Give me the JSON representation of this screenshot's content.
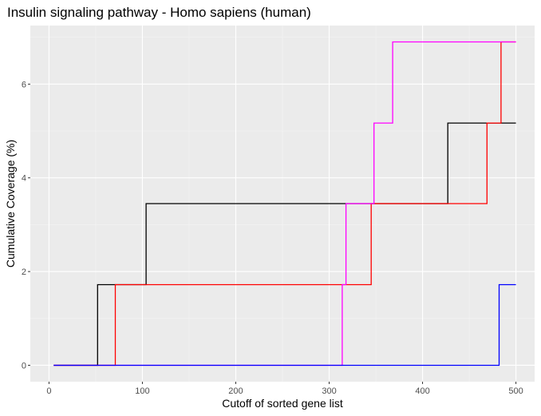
{
  "chart_data": {
    "type": "line",
    "step": true,
    "title": "Insulin signaling pathway - Homo sapiens (human)",
    "xlabel": "Cutoff of sorted gene list",
    "ylabel": "Cumulative Coverage (%)",
    "xlim": [
      -20,
      520
    ],
    "ylim": [
      -0.35,
      7.25
    ],
    "xticks": [
      0,
      100,
      200,
      300,
      400,
      500
    ],
    "yticks": [
      0,
      2,
      4,
      6
    ],
    "grid": true,
    "legend": "none",
    "series": [
      {
        "color": "#000000",
        "points": [
          [
            5,
            0
          ],
          [
            52,
            0
          ],
          [
            52,
            1.72
          ],
          [
            104,
            1.72
          ],
          [
            104,
            3.45
          ],
          [
            427,
            3.45
          ],
          [
            427,
            5.17
          ],
          [
            500,
            5.17
          ]
        ]
      },
      {
        "color": "#ff0000",
        "points": [
          [
            5,
            0
          ],
          [
            71,
            0
          ],
          [
            71,
            1.72
          ],
          [
            345,
            1.72
          ],
          [
            345,
            3.45
          ],
          [
            469,
            3.45
          ],
          [
            469,
            5.17
          ],
          [
            484,
            5.17
          ],
          [
            484,
            6.9
          ],
          [
            500,
            6.9
          ]
        ]
      },
      {
        "color": "#ff00ff",
        "points": [
          [
            5,
            0
          ],
          [
            314,
            0
          ],
          [
            314,
            1.72
          ],
          [
            318,
            1.72
          ],
          [
            318,
            3.45
          ],
          [
            348,
            3.45
          ],
          [
            348,
            5.17
          ],
          [
            368,
            5.17
          ],
          [
            368,
            6.9
          ],
          [
            500,
            6.9
          ]
        ]
      },
      {
        "color": "#0000ff",
        "points": [
          [
            5,
            0
          ],
          [
            482,
            0
          ],
          [
            482,
            1.72
          ],
          [
            500,
            1.72
          ]
        ]
      }
    ]
  }
}
